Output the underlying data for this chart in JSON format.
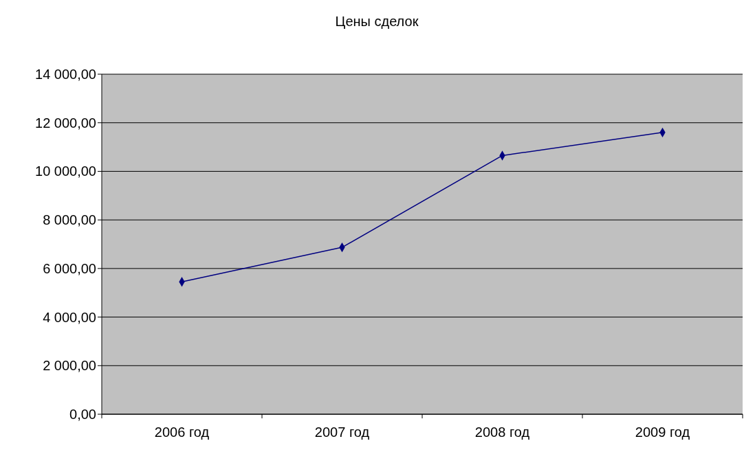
{
  "chart_data": {
    "type": "line",
    "title": "Цены сделок",
    "categories": [
      "2006 год",
      "2007 год",
      "2008 год",
      "2009 год"
    ],
    "series": [
      {
        "color": "#000080",
        "values": [
          5450,
          6870,
          10650,
          11600
        ]
      }
    ],
    "ylim": [
      0,
      14000
    ],
    "yticks": [
      {
        "value": 0,
        "label": "0,00"
      },
      {
        "value": 2000,
        "label": "2 000,00"
      },
      {
        "value": 4000,
        "label": "4 000,00"
      },
      {
        "value": 6000,
        "label": "6 000,00"
      },
      {
        "value": 8000,
        "label": "8 000,00"
      },
      {
        "value": 10000,
        "label": "10 000,00"
      },
      {
        "value": 12000,
        "label": "12 000,00"
      },
      {
        "value": 14000,
        "label": "14 000,00"
      }
    ],
    "grid": "y",
    "marker": "diamond"
  }
}
